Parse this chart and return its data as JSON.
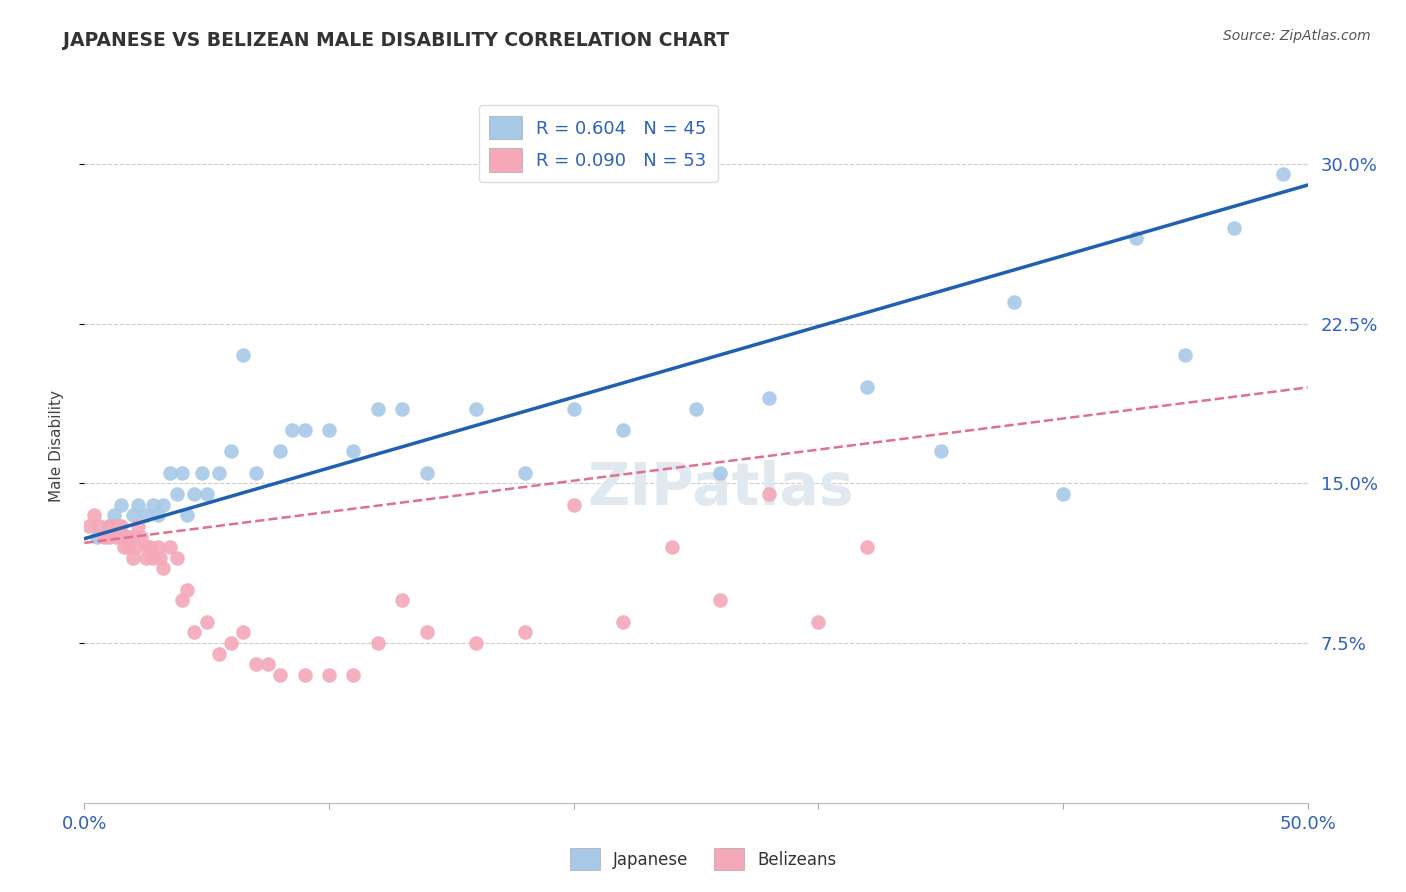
{
  "title": "JAPANESE VS BELIZEAN MALE DISABILITY CORRELATION CHART",
  "source": "Source: ZipAtlas.com",
  "ylabel_label": "Male Disability",
  "xlim": [
    0.0,
    0.5
  ],
  "ylim": [
    0.0,
    0.335
  ],
  "xticks": [
    0.0,
    0.1,
    0.2,
    0.3,
    0.4,
    0.5
  ],
  "xticklabels": [
    "0.0%",
    "",
    "",
    "",
    "",
    "50.0%"
  ],
  "ytick_positions": [
    0.075,
    0.15,
    0.225,
    0.3
  ],
  "ytick_labels": [
    "7.5%",
    "15.0%",
    "22.5%",
    "30.0%"
  ],
  "grid_color": "#cccccc",
  "background_color": "#ffffff",
  "japanese_R": 0.604,
  "japanese_N": 45,
  "belizean_R": 0.09,
  "belizean_N": 53,
  "japanese_color": "#a8c8e8",
  "belizean_color": "#f4a8b8",
  "japanese_line_color": "#2060b0",
  "belizean_line_color": "#e07090",
  "japanese_x": [
    0.005,
    0.01,
    0.012,
    0.015,
    0.018,
    0.02,
    0.022,
    0.025,
    0.028,
    0.03,
    0.032,
    0.035,
    0.038,
    0.04,
    0.042,
    0.045,
    0.048,
    0.05,
    0.055,
    0.06,
    0.065,
    0.07,
    0.08,
    0.085,
    0.09,
    0.1,
    0.11,
    0.12,
    0.13,
    0.14,
    0.16,
    0.18,
    0.2,
    0.22,
    0.25,
    0.26,
    0.28,
    0.32,
    0.35,
    0.38,
    0.4,
    0.43,
    0.45,
    0.47,
    0.49
  ],
  "japanese_y": [
    0.125,
    0.13,
    0.135,
    0.14,
    0.125,
    0.135,
    0.14,
    0.135,
    0.14,
    0.135,
    0.14,
    0.155,
    0.145,
    0.155,
    0.135,
    0.145,
    0.155,
    0.145,
    0.155,
    0.165,
    0.21,
    0.155,
    0.165,
    0.175,
    0.175,
    0.175,
    0.165,
    0.185,
    0.185,
    0.155,
    0.185,
    0.155,
    0.185,
    0.175,
    0.185,
    0.155,
    0.19,
    0.195,
    0.165,
    0.235,
    0.145,
    0.265,
    0.21,
    0.27,
    0.295
  ],
  "belizean_x": [
    0.002,
    0.004,
    0.006,
    0.008,
    0.01,
    0.01,
    0.012,
    0.013,
    0.014,
    0.015,
    0.015,
    0.016,
    0.017,
    0.018,
    0.019,
    0.02,
    0.021,
    0.022,
    0.023,
    0.025,
    0.026,
    0.027,
    0.028,
    0.03,
    0.031,
    0.032,
    0.035,
    0.038,
    0.04,
    0.042,
    0.045,
    0.05,
    0.055,
    0.06,
    0.065,
    0.07,
    0.075,
    0.08,
    0.09,
    0.1,
    0.11,
    0.12,
    0.13,
    0.14,
    0.16,
    0.18,
    0.2,
    0.22,
    0.24,
    0.26,
    0.28,
    0.3,
    0.32
  ],
  "belizean_y": [
    0.13,
    0.135,
    0.13,
    0.125,
    0.125,
    0.13,
    0.13,
    0.125,
    0.13,
    0.125,
    0.13,
    0.12,
    0.125,
    0.12,
    0.125,
    0.115,
    0.12,
    0.13,
    0.125,
    0.115,
    0.12,
    0.12,
    0.115,
    0.12,
    0.115,
    0.11,
    0.12,
    0.115,
    0.095,
    0.1,
    0.08,
    0.085,
    0.07,
    0.075,
    0.08,
    0.065,
    0.065,
    0.06,
    0.06,
    0.06,
    0.06,
    0.075,
    0.095,
    0.08,
    0.075,
    0.08,
    0.14,
    0.085,
    0.12,
    0.095,
    0.145,
    0.085,
    0.12
  ],
  "jp_line_x": [
    0.0,
    0.5
  ],
  "jp_line_y": [
    0.124,
    0.29
  ],
  "bz_line_x": [
    0.0,
    0.5
  ],
  "bz_line_y": [
    0.122,
    0.195
  ]
}
